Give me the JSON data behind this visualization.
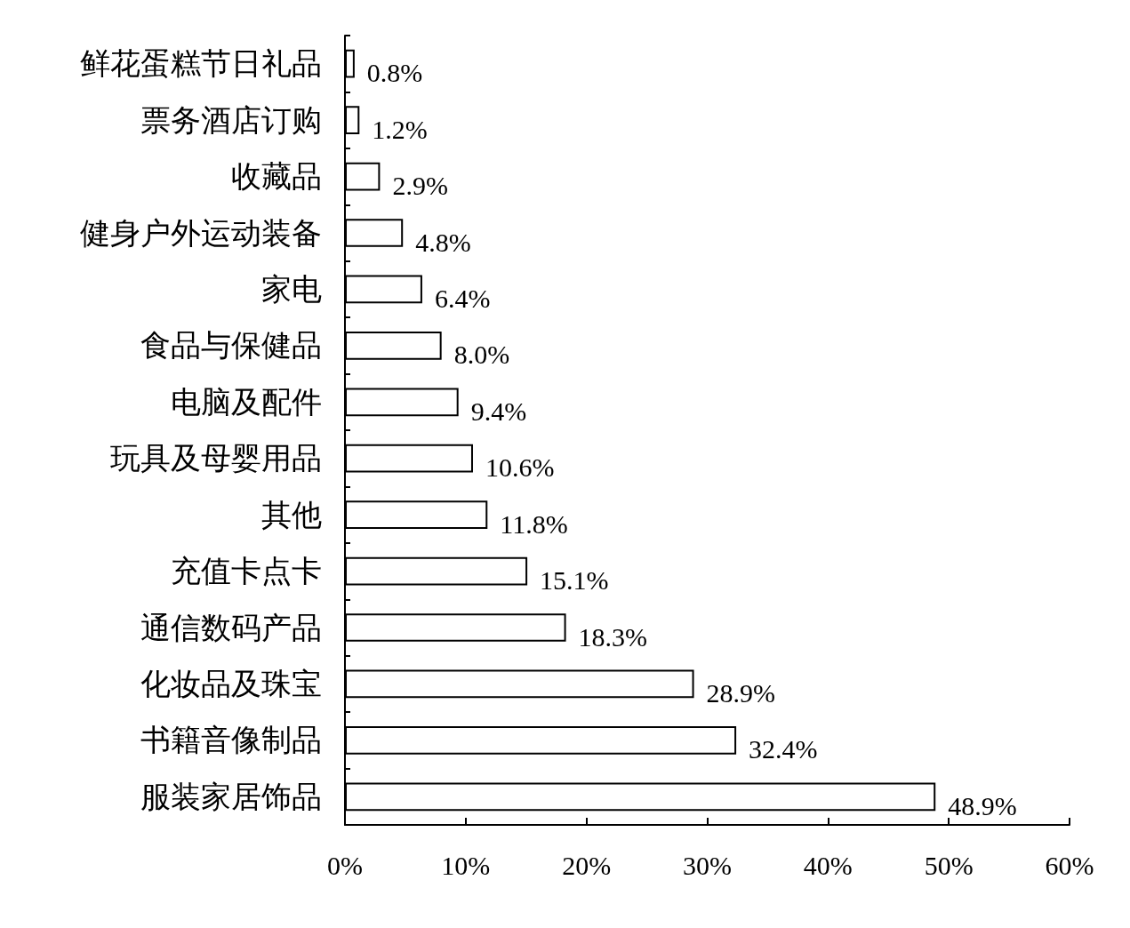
{
  "chart_data": {
    "type": "bar",
    "orientation": "horizontal",
    "categories": [
      "鲜花蛋糕节日礼品",
      "票务酒店订购",
      "收藏品",
      "健身户外运动装备",
      "家电",
      "食品与保健品",
      "电脑及配件",
      "玩具及母婴用品",
      "其他",
      "充值卡点卡",
      "通信数码产品",
      "化妆品及珠宝",
      "书籍音像制品",
      "服装家居饰品"
    ],
    "values": [
      0.8,
      1.2,
      2.9,
      4.8,
      6.4,
      8.0,
      9.4,
      10.6,
      11.8,
      15.1,
      18.3,
      28.9,
      32.4,
      48.9
    ],
    "value_labels": [
      "0.8%",
      "1.2%",
      "2.9%",
      "4.8%",
      "6.4%",
      "8.0%",
      "9.4%",
      "10.6%",
      "11.8%",
      "15.1%",
      "18.3%",
      "28.9%",
      "32.4%",
      "48.9%"
    ],
    "color": "#ffffff",
    "xlim": [
      0,
      60
    ],
    "xticks": [
      {
        "value": 0,
        "label": "0%"
      },
      {
        "value": 10,
        "label": "10%"
      },
      {
        "value": 20,
        "label": "20%"
      },
      {
        "value": 30,
        "label": "30%"
      },
      {
        "value": 40,
        "label": "40%"
      },
      {
        "value": 50,
        "label": "50%"
      },
      {
        "value": 60,
        "label": "60%"
      }
    ]
  }
}
